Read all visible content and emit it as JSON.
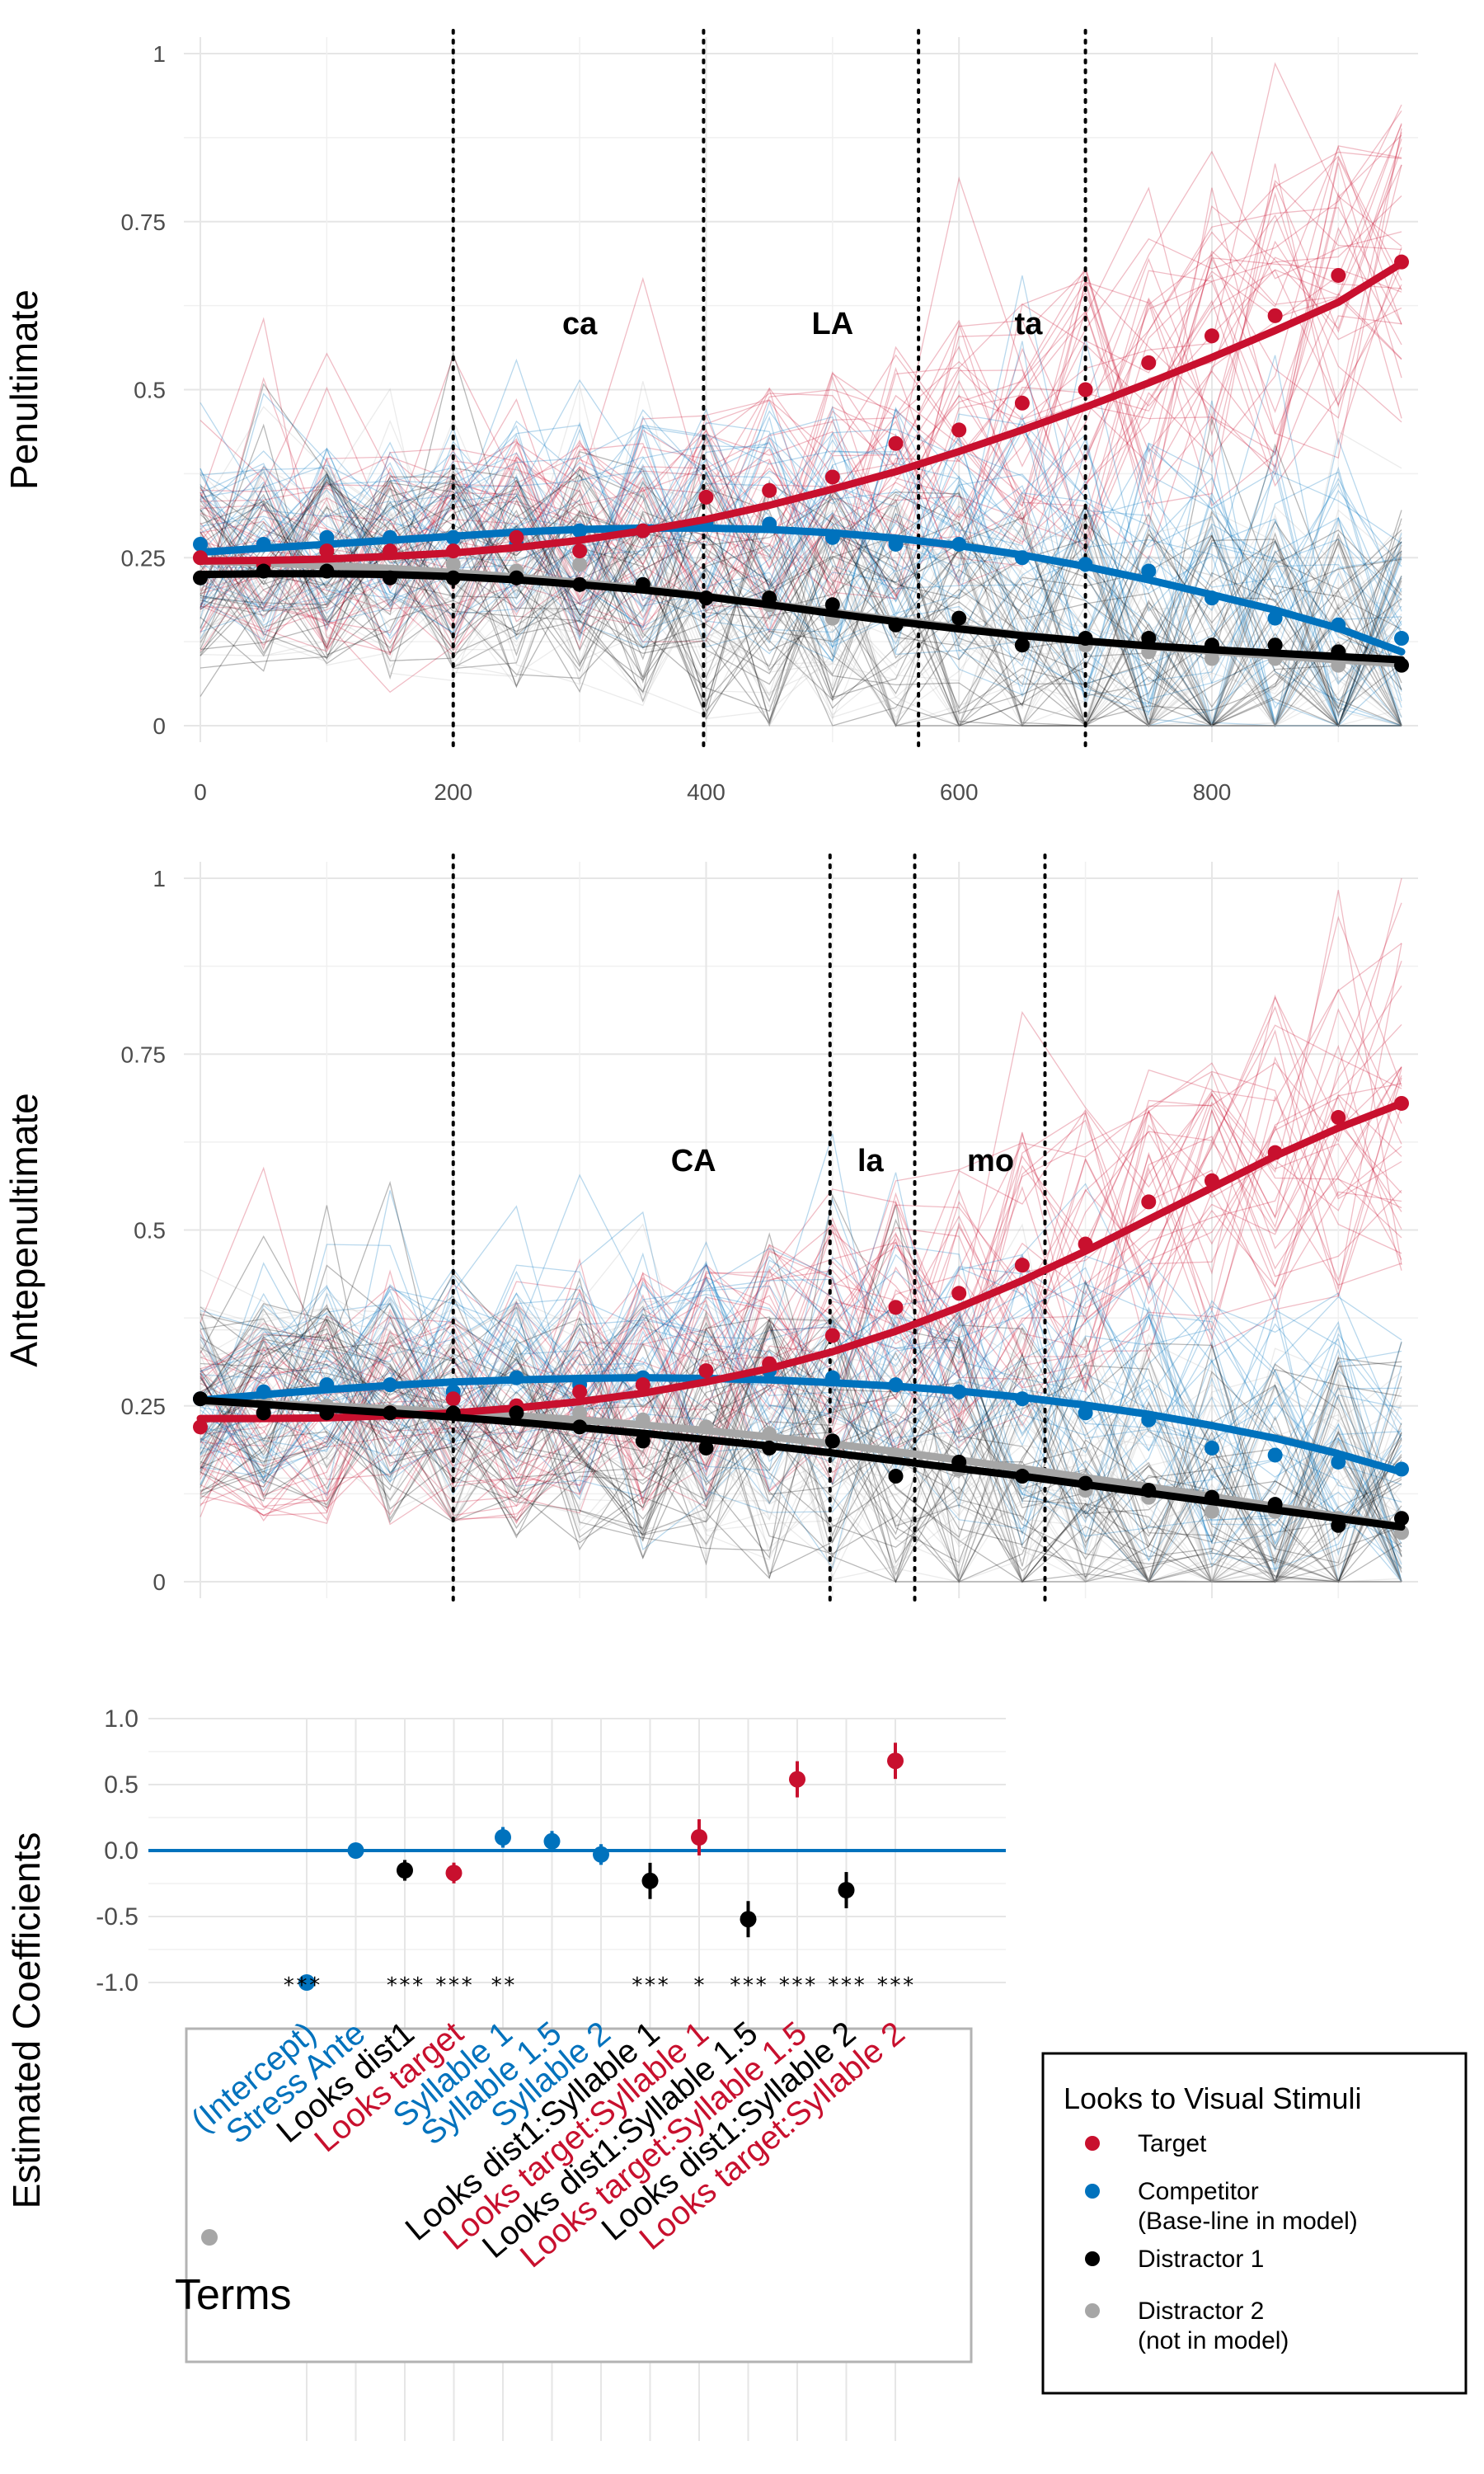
{
  "colors": {
    "Target": "#c8102e",
    "Competitor": "#0072bd",
    "Distractor 1": "#000000",
    "Distractor 2": "#a6a6a6",
    "grid": "#e6e6e6"
  },
  "chart_data": [
    {
      "type": "line",
      "ylabel": "Penultimate",
      "xlim": [
        0,
        950
      ],
      "ylim": [
        0,
        1
      ],
      "x_ticks": [
        "0",
        "200",
        "400",
        "600",
        "800"
      ],
      "y_ticks": [
        "0",
        "0.25",
        "0.5",
        "0.75",
        "1"
      ],
      "vlines": [
        200,
        398,
        568,
        700
      ],
      "syllables": [
        {
          "label": "ca",
          "x": 300,
          "y": 0.6
        },
        {
          "label": "LA",
          "x": 500,
          "y": 0.6
        },
        {
          "label": "ta",
          "x": 655,
          "y": 0.6
        }
      ],
      "x": [
        0,
        50,
        100,
        150,
        200,
        250,
        300,
        350,
        400,
        450,
        500,
        550,
        600,
        650,
        700,
        750,
        800,
        850,
        900,
        950
      ],
      "series": [
        {
          "name": "Target",
          "points": [
            0.25,
            0.24,
            0.26,
            0.26,
            0.26,
            0.28,
            0.26,
            0.29,
            0.34,
            0.35,
            0.37,
            0.42,
            0.44,
            0.48,
            0.5,
            0.54,
            0.58,
            0.61,
            0.67,
            0.69
          ],
          "fit": [
            0.245,
            0.246,
            0.248,
            0.252,
            0.257,
            0.265,
            0.276,
            0.29,
            0.307,
            0.328,
            0.352,
            0.378,
            0.408,
            0.44,
            0.474,
            0.51,
            0.548,
            0.588,
            0.63,
            0.688
          ]
        },
        {
          "name": "Competitor",
          "points": [
            0.27,
            0.27,
            0.28,
            0.28,
            0.28,
            0.27,
            0.29,
            0.29,
            0.3,
            0.3,
            0.28,
            0.27,
            0.27,
            0.25,
            0.24,
            0.23,
            0.19,
            0.16,
            0.15,
            0.13
          ],
          "fit": [
            0.258,
            0.264,
            0.27,
            0.276,
            0.282,
            0.288,
            0.292,
            0.294,
            0.294,
            0.292,
            0.287,
            0.279,
            0.268,
            0.254,
            0.237,
            0.217,
            0.195,
            0.172,
            0.145,
            0.11
          ]
        },
        {
          "name": "Distractor 1",
          "points": [
            0.22,
            0.23,
            0.23,
            0.22,
            0.22,
            0.22,
            0.21,
            0.21,
            0.19,
            0.19,
            0.18,
            0.15,
            0.16,
            0.12,
            0.13,
            0.13,
            0.12,
            0.12,
            0.11,
            0.09
          ],
          "fit": [
            0.225,
            0.226,
            0.226,
            0.225,
            0.222,
            0.217,
            0.21,
            0.202,
            0.192,
            0.18,
            0.167,
            0.155,
            0.144,
            0.134,
            0.126,
            0.119,
            0.113,
            0.108,
            0.103,
            0.098
          ]
        },
        {
          "name": "Distractor 2",
          "points": [
            0.25,
            0.24,
            0.23,
            0.22,
            0.24,
            0.23,
            0.24,
            0.21,
            0.19,
            0.18,
            0.16,
            0.15,
            0.15,
            0.12,
            0.12,
            0.11,
            0.1,
            0.1,
            0.09,
            0.09
          ],
          "fit": [
            0.245,
            0.242,
            0.238,
            0.234,
            0.228,
            0.221,
            0.213,
            0.204,
            0.193,
            0.181,
            0.169,
            0.157,
            0.146,
            0.135,
            0.126,
            0.118,
            0.111,
            0.104,
            0.098,
            0.092
          ]
        }
      ]
    },
    {
      "type": "line",
      "ylabel": "Antepenultimate",
      "xlim": [
        0,
        950
      ],
      "ylim": [
        0,
        1
      ],
      "y_ticks": [
        "0",
        "0.25",
        "0.5",
        "0.75",
        "1"
      ],
      "vlines": [
        200,
        498,
        565,
        668
      ],
      "syllables": [
        {
          "label": "CA",
          "x": 390,
          "y": 0.6
        },
        {
          "label": "la",
          "x": 530,
          "y": 0.6
        },
        {
          "label": "mo",
          "x": 625,
          "y": 0.6
        }
      ],
      "x": [
        0,
        50,
        100,
        150,
        200,
        250,
        300,
        350,
        400,
        450,
        500,
        550,
        600,
        650,
        700,
        750,
        800,
        850,
        900,
        950
      ],
      "series": [
        {
          "name": "Target",
          "points": [
            0.22,
            0.24,
            0.24,
            0.24,
            0.26,
            0.25,
            0.27,
            0.28,
            0.3,
            0.31,
            0.35,
            0.39,
            0.41,
            0.45,
            0.48,
            0.54,
            0.57,
            0.61,
            0.66,
            0.68
          ],
          "fit": [
            0.232,
            0.232,
            0.233,
            0.236,
            0.24,
            0.247,
            0.256,
            0.268,
            0.284,
            0.303,
            0.327,
            0.356,
            0.39,
            0.428,
            0.47,
            0.515,
            0.56,
            0.605,
            0.645,
            0.68
          ]
        },
        {
          "name": "Competitor",
          "points": [
            0.26,
            0.27,
            0.28,
            0.28,
            0.27,
            0.29,
            0.28,
            0.29,
            0.29,
            0.3,
            0.29,
            0.28,
            0.27,
            0.26,
            0.24,
            0.23,
            0.19,
            0.18,
            0.17,
            0.16
          ],
          "fit": [
            0.258,
            0.266,
            0.273,
            0.279,
            0.284,
            0.287,
            0.289,
            0.29,
            0.289,
            0.287,
            0.283,
            0.278,
            0.271,
            0.262,
            0.251,
            0.238,
            0.222,
            0.204,
            0.182,
            0.156
          ]
        },
        {
          "name": "Distractor 1",
          "points": [
            0.26,
            0.24,
            0.24,
            0.24,
            0.24,
            0.24,
            0.22,
            0.2,
            0.19,
            0.19,
            0.2,
            0.15,
            0.17,
            0.15,
            0.14,
            0.13,
            0.12,
            0.11,
            0.08,
            0.09
          ],
          "fit": [
            0.258,
            0.252,
            0.246,
            0.24,
            0.234,
            0.227,
            0.219,
            0.211,
            0.202,
            0.193,
            0.183,
            0.172,
            0.161,
            0.15,
            0.138,
            0.126,
            0.114,
            0.102,
            0.09,
            0.078
          ]
        },
        {
          "name": "Distractor 2",
          "points": [
            0.26,
            0.26,
            0.25,
            0.24,
            0.24,
            0.25,
            0.24,
            0.23,
            0.22,
            0.21,
            0.2,
            0.18,
            0.16,
            0.15,
            0.13,
            0.12,
            0.1,
            0.1,
            0.09,
            0.07
          ],
          "fit": [
            0.256,
            0.253,
            0.25,
            0.246,
            0.241,
            0.236,
            0.23,
            0.223,
            0.215,
            0.206,
            0.196,
            0.185,
            0.173,
            0.161,
            0.148,
            0.135,
            0.121,
            0.107,
            0.093,
            0.078
          ]
        }
      ]
    },
    {
      "type": "scatter",
      "ylabel": "Estimated Coefficients",
      "xlabel": "Terms",
      "ylim": [
        -1.25,
        1.1
      ],
      "y_ticks": [
        "1.0",
        "0.5",
        "0.0",
        "-0.5",
        "-1.0"
      ],
      "baseline": 0,
      "terms": [
        {
          "term": "(Intercept)",
          "estimate": -1.0,
          "se": 0.03,
          "sig": "***",
          "group": "Competitor"
        },
        {
          "term": "Stress Ante",
          "estimate": 0.0,
          "se": 0.03,
          "sig": "",
          "group": "Competitor"
        },
        {
          "term": "Looks dist1",
          "estimate": -0.15,
          "se": 0.04,
          "sig": "***",
          "group": "Distractor 1"
        },
        {
          "term": "Looks target",
          "estimate": -0.17,
          "se": 0.04,
          "sig": "***",
          "group": "Target"
        },
        {
          "term": "Syllable 1",
          "estimate": 0.1,
          "se": 0.04,
          "sig": "**",
          "group": "Competitor"
        },
        {
          "term": "Syllable 1.5",
          "estimate": 0.07,
          "se": 0.04,
          "sig": "",
          "group": "Competitor"
        },
        {
          "term": "Syllable 2",
          "estimate": -0.03,
          "se": 0.04,
          "sig": "",
          "group": "Competitor"
        },
        {
          "term": "Looks dist1:Syllable 1",
          "estimate": -0.23,
          "se": 0.07,
          "sig": "***",
          "group": "Distractor 1"
        },
        {
          "term": "Looks target:Syllable 1",
          "estimate": 0.1,
          "se": 0.07,
          "sig": "*",
          "group": "Target"
        },
        {
          "term": "Looks dist1:Syllable 1.5",
          "estimate": -0.52,
          "se": 0.07,
          "sig": "***",
          "group": "Distractor 1"
        },
        {
          "term": "Looks target:Syllable 1.5",
          "estimate": 0.54,
          "se": 0.07,
          "sig": "***",
          "group": "Target"
        },
        {
          "term": "Looks dist1:Syllable 2",
          "estimate": -0.3,
          "se": 0.07,
          "sig": "***",
          "group": "Distractor 1"
        },
        {
          "term": "Looks target:Syllable 2",
          "estimate": 0.68,
          "se": 0.07,
          "sig": "***",
          "group": "Target"
        }
      ]
    }
  ],
  "legend": {
    "title": "Looks to Visual Stimuli",
    "position": "right",
    "items": [
      {
        "lines": [
          "Target"
        ],
        "group": "Target"
      },
      {
        "lines": [
          "Competitor",
          "(Base-line in model)"
        ],
        "group": "Competitor"
      },
      {
        "lines": [
          "Distractor 1"
        ],
        "group": "Distractor 1"
      },
      {
        "lines": [
          "Distractor 2",
          "(not in model)"
        ],
        "group": "Distractor 2"
      }
    ]
  }
}
